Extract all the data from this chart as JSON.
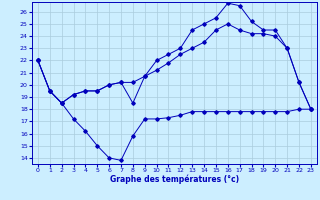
{
  "bg_color": "#cceeff",
  "line_color": "#0000bb",
  "grid_color": "#aaccdd",
  "xlabel": "Graphe des températures (°c)",
  "ylim": [
    13.5,
    26.8
  ],
  "xlim": [
    -0.5,
    23.5
  ],
  "yticks": [
    14,
    15,
    16,
    17,
    18,
    19,
    20,
    21,
    22,
    23,
    24,
    25,
    26
  ],
  "xticks": [
    0,
    1,
    2,
    3,
    4,
    5,
    6,
    7,
    8,
    9,
    10,
    11,
    12,
    13,
    14,
    15,
    16,
    17,
    18,
    19,
    20,
    21,
    22,
    23
  ],
  "line_min_x": [
    0,
    1,
    2,
    3,
    4,
    5,
    6,
    7,
    8,
    9,
    10,
    11,
    12,
    13,
    14,
    15,
    16,
    17,
    18,
    19,
    20,
    21,
    22,
    23
  ],
  "line_min_y": [
    22.0,
    19.5,
    18.5,
    17.2,
    16.2,
    15.0,
    14.0,
    13.8,
    15.8,
    17.2,
    17.2,
    17.3,
    17.5,
    17.8,
    17.8,
    17.8,
    17.8,
    17.8,
    17.8,
    17.8,
    17.8,
    17.8,
    18.0,
    18.0
  ],
  "line_mid_x": [
    0,
    1,
    2,
    3,
    4,
    5,
    6,
    7,
    8,
    9,
    10,
    11,
    12,
    13,
    14,
    15,
    16,
    17,
    18,
    19,
    20,
    21,
    22,
    23
  ],
  "line_mid_y": [
    22.0,
    19.5,
    18.5,
    19.2,
    19.5,
    19.5,
    20.0,
    20.2,
    20.2,
    20.7,
    21.2,
    21.8,
    22.5,
    23.0,
    23.5,
    24.5,
    25.0,
    24.5,
    24.2,
    24.2,
    24.0,
    23.0,
    20.2,
    18.0
  ],
  "line_max_x": [
    0,
    1,
    2,
    3,
    4,
    5,
    6,
    7,
    8,
    9,
    10,
    11,
    12,
    13,
    14,
    15,
    16,
    17,
    18,
    19,
    20,
    21,
    22,
    23
  ],
  "line_max_y": [
    22.0,
    19.5,
    18.5,
    19.2,
    19.5,
    19.5,
    20.0,
    20.2,
    18.5,
    20.7,
    22.0,
    22.5,
    23.0,
    24.5,
    25.0,
    25.5,
    26.7,
    26.5,
    25.2,
    24.5,
    24.5,
    23.0,
    20.2,
    18.0
  ]
}
